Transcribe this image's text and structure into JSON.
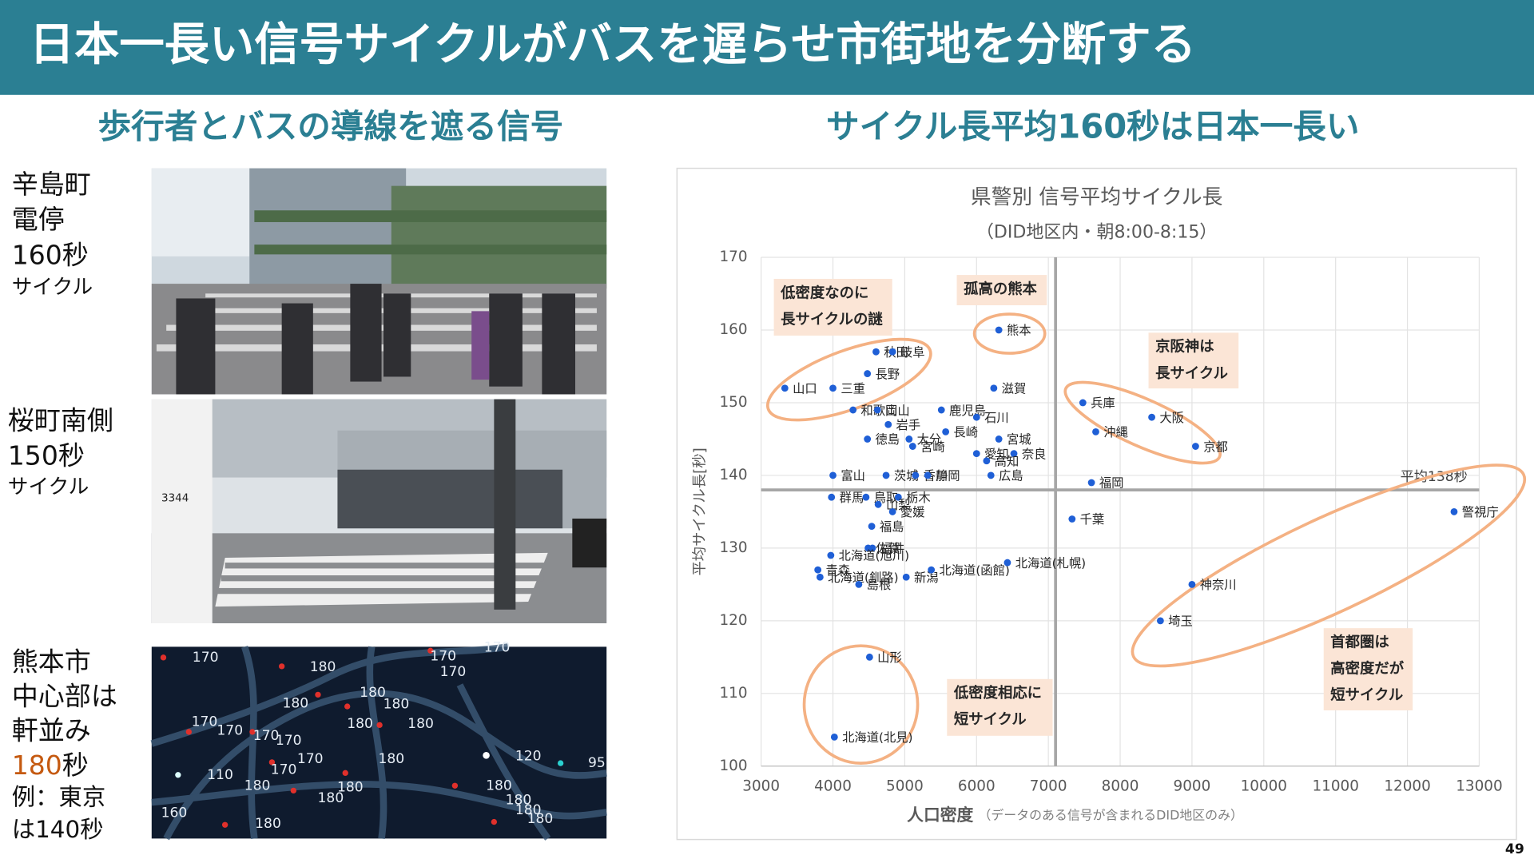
{
  "header": {
    "title": "日本一長い信号サイクルがバスを遅らせ市街地を分断する"
  },
  "left": {
    "heading": "歩行者とバスの導線を遮る信号",
    "caption1": [
      "辛島町",
      "電停",
      "160秒"
    ],
    "caption1_small": "サイクル",
    "caption2": [
      "桜町南側",
      "150秒"
    ],
    "caption2_small": "サイクル",
    "caption3": [
      "熊本市",
      "中心部は",
      "軒並み"
    ],
    "caption3_highlight": "180",
    "caption3_unit": "秒",
    "caption3_rest": [
      "例：東京",
      "は140秒"
    ],
    "photo2_text": "3344",
    "map_labels": [
      "170",
      "180",
      "170",
      "170",
      "170",
      "180",
      "180",
      "180",
      "180",
      "180",
      "170",
      "170",
      "170",
      "170",
      "170",
      "180",
      "120",
      "95",
      "110",
      "170",
      "180",
      "180",
      "180",
      "180",
      "180",
      "180",
      "180",
      "160",
      "180"
    ]
  },
  "right_heading": "サイクル長平均160秒は日本一長い",
  "chart_data": {
    "type": "scatter",
    "title": "県警別 信号平均サイクル長",
    "subtitle": "（DID地区内・朝8:00-8:15）",
    "x_label": "人口密度",
    "x_label_note": "（データのある信号が含まれるDID地区のみ）",
    "y_label": "平均サイクル長[秒]",
    "xlim": [
      3000,
      13000
    ],
    "ylim": [
      100,
      170
    ],
    "xticks": [
      3000,
      4000,
      5000,
      6000,
      7000,
      8000,
      9000,
      10000,
      11000,
      12000,
      13000
    ],
    "yticks": [
      100,
      110,
      120,
      130,
      140,
      150,
      160,
      170
    ],
    "grid": true,
    "color": "#1f5fd6",
    "point_labels": [
      "山口",
      "三重",
      "秋田",
      "岐阜",
      "長野",
      "和歌山",
      "岡山",
      "鹿児島",
      "石川",
      "滋賀",
      "岩手",
      "徳島",
      "大分",
      "宮崎",
      "長崎",
      "宮城",
      "愛知",
      "奈良",
      "高知",
      "熊本",
      "富山",
      "茨城",
      "香川",
      "静岡",
      "広島",
      "群馬",
      "鳥取",
      "栃木",
      "山梨",
      "愛媛",
      "福島",
      "福井",
      "佐賀",
      "北海道(旭川)",
      "青森",
      "北海道(釧路)",
      "島根",
      "新潟",
      "北海道(函館)",
      "北海道(札幌)",
      "兵庫",
      "大阪",
      "沖縄",
      "京都",
      "福岡",
      "千葉",
      "警視庁",
      "神奈川",
      "埼玉",
      "山形",
      "北海道(北見)"
    ],
    "x": [
      3330,
      4000,
      4600,
      4830,
      4480,
      4280,
      4620,
      5510,
      6000,
      6240,
      4770,
      4480,
      5060,
      5110,
      5570,
      6310,
      6000,
      6520,
      6140,
      6310,
      4000,
      4740,
      5150,
      5320,
      6200,
      3980,
      4460,
      4910,
      4630,
      4830,
      4540,
      4550,
      4490,
      3970,
      3790,
      3820,
      4360,
      5020,
      5370,
      6430,
      7480,
      8440,
      7660,
      9050,
      7600,
      7330,
      12650,
      9000,
      8560,
      4510,
      4020
    ],
    "values": [
      152,
      152,
      157,
      157,
      154,
      149,
      149,
      149,
      148,
      152,
      147,
      145,
      145,
      144,
      146,
      145,
      143,
      143,
      142,
      160,
      140,
      140,
      140,
      140,
      140,
      137,
      137,
      137,
      136,
      135,
      133,
      130,
      130,
      129,
      127,
      126,
      125,
      126,
      127,
      128,
      150,
      148,
      146,
      144,
      139,
      134,
      135,
      125,
      120,
      115,
      104
    ],
    "reference_lines": {
      "x": 7100,
      "y": 138,
      "y_label": "平均138秒"
    },
    "annotations": [
      {
        "lines": [
          "低密度なのに",
          "長サイクルの謎"
        ]
      },
      {
        "lines": [
          "孤高の熊本"
        ]
      },
      {
        "lines": [
          "京阪神は",
          "長サイクル"
        ]
      },
      {
        "lines": [
          "首都圏は",
          "高密度だが",
          "短サイクル"
        ]
      },
      {
        "lines": [
          "低密度相応に",
          "短サイクル"
        ]
      }
    ]
  },
  "page_number": "49"
}
